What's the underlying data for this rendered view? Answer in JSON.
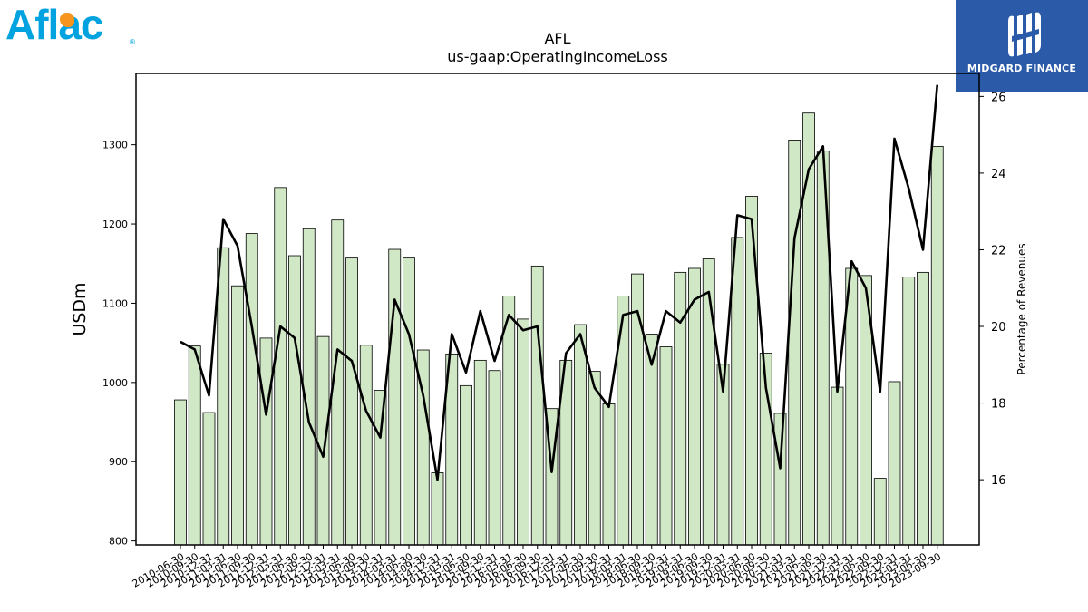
{
  "logos": {
    "left_brand": "Aflac",
    "left_icon": "duck-icon",
    "right_brand": "MIDGARD FINANCE",
    "right_icon": "midgard-monogram-icon",
    "right_bg_color": "#2b5aa8",
    "left_color": "#00a3e0"
  },
  "chart_data": {
    "type": "bar",
    "title": "AFL",
    "subtitle": "us-gaap:OperatingIncomeLoss",
    "ylabel": "USDm",
    "y2label": "Percentage of Revenues",
    "ylim": [
      795,
      1390
    ],
    "y2lim": [
      14.3,
      26.6
    ],
    "yticks": [
      800,
      900,
      1000,
      1100,
      1200,
      1300
    ],
    "y2ticks": [
      16,
      18,
      20,
      22,
      24,
      26
    ],
    "bar_color": "#d0e8c6",
    "line_color": "#000000",
    "grid": false,
    "legend": "none",
    "categories": [
      "2010-06-30",
      "2010-09-30",
      "2010-12-31",
      "2011-03-31",
      "2011-06-30",
      "2011-09-30",
      "2011-12-31",
      "2012-03-31",
      "2012-06-30",
      "2012-09-30",
      "2012-12-31",
      "2013-03-31",
      "2013-06-30",
      "2013-09-30",
      "2013-12-31",
      "2014-03-31",
      "2014-06-30",
      "2014-09-30",
      "2014-12-31",
      "2015-03-31",
      "2015-06-30",
      "2015-09-30",
      "2015-12-31",
      "2016-03-31",
      "2016-06-30",
      "2016-09-30",
      "2016-12-31",
      "2017-03-31",
      "2017-06-30",
      "2017-09-30",
      "2017-12-31",
      "2018-03-31",
      "2018-06-30",
      "2018-09-30",
      "2018-12-31",
      "2019-03-31",
      "2019-06-30",
      "2019-09-30",
      "2019-12-31",
      "2020-03-31",
      "2020-06-30",
      "2020-09-30",
      "2020-12-31",
      "2021-03-31",
      "2021-06-30",
      "2021-09-30",
      "2021-12-31",
      "2022-03-31",
      "2022-06-30",
      "2022-09-30",
      "2022-12-31",
      "2023-03-31",
      "2023-06-30",
      "2023-09-30"
    ],
    "values": [
      978,
      1046,
      962,
      1170,
      1122,
      1188,
      1056,
      1246,
      1160,
      1194,
      1058,
      1205,
      1157,
      1047,
      990,
      1168,
      1157,
      1041,
      886,
      1036,
      996,
      1028,
      1015,
      1109,
      1080,
      1147,
      967,
      1028,
      1073,
      1014,
      973,
      1109,
      1137,
      1061,
      1045,
      1139,
      1144,
      1156,
      1023,
      1183,
      1235,
      1037,
      961,
      1306,
      1340,
      1292,
      994,
      1144,
      1135,
      879,
      1001,
      1133,
      1139,
      1298
    ],
    "series": [
      {
        "name": "Percentage of Revenues",
        "axis": "right",
        "values": [
          19.6,
          19.4,
          18.2,
          22.8,
          22.1,
          20.0,
          17.7,
          20.0,
          19.7,
          17.5,
          16.6,
          19.4,
          19.1,
          17.8,
          17.1,
          20.7,
          19.8,
          18.2,
          16.0,
          19.8,
          18.8,
          20.4,
          19.1,
          20.3,
          19.9,
          20.0,
          16.2,
          19.3,
          19.8,
          18.4,
          17.9,
          20.3,
          20.4,
          19.0,
          20.4,
          20.1,
          20.7,
          20.9,
          18.3,
          22.9,
          22.8,
          18.4,
          16.3,
          22.3,
          24.1,
          24.7,
          18.3,
          21.7,
          21.0,
          18.3,
          24.9,
          23.6,
          22.0,
          26.3
        ]
      }
    ]
  }
}
